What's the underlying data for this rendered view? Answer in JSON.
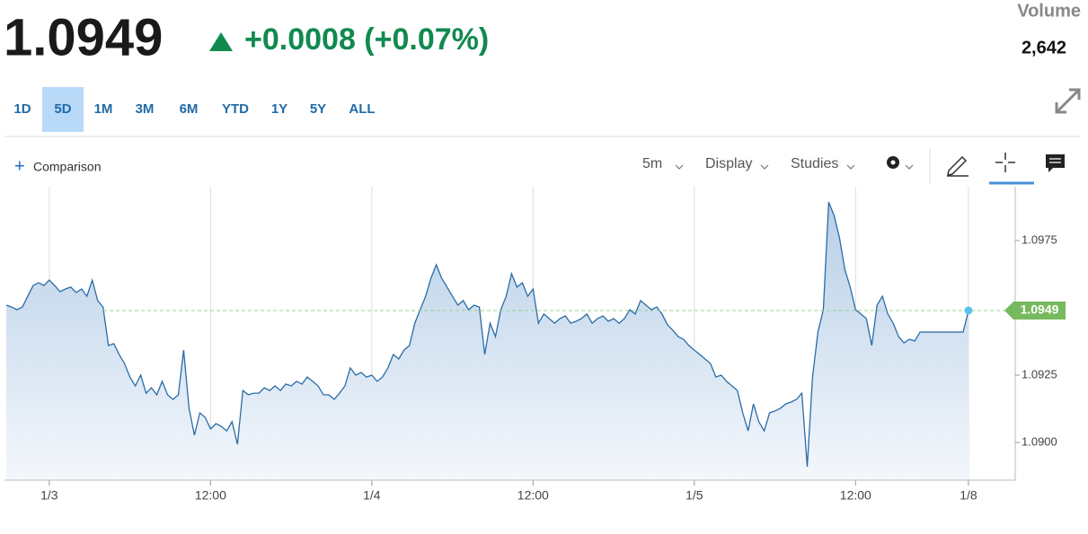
{
  "header": {
    "price": "1.0949",
    "change": "+0.0008 (+0.07%)",
    "volume_label": "Volume",
    "volume": "2,642"
  },
  "ranges": [
    "1D",
    "5D",
    "1M",
    "3M",
    "6M",
    "YTD",
    "1Y",
    "5Y",
    "ALL"
  ],
  "selected_range": "5D",
  "toolbar": {
    "comparison": "Comparison",
    "interval": "5m",
    "display": "Display",
    "studies": "Studies"
  },
  "chart_data": {
    "type": "line",
    "color": "#2a6ca6",
    "categories": [
      null,
      null,
      null,
      null,
      null,
      null,
      null,
      null,
      "1/3",
      null,
      null,
      null,
      null,
      null,
      null,
      null,
      null,
      null,
      null,
      null,
      null,
      null,
      null,
      null,
      null,
      null,
      null,
      null,
      null,
      null,
      null,
      null,
      null,
      null,
      null,
      null,
      null,
      null,
      "12:00",
      null,
      null,
      null,
      null,
      null,
      null,
      null,
      null,
      null,
      null,
      null,
      null,
      null,
      null,
      null,
      null,
      null,
      null,
      null,
      null,
      null,
      null,
      null,
      null,
      null,
      null,
      null,
      null,
      null,
      "1/4",
      null,
      null,
      null,
      null,
      null,
      null,
      null,
      null,
      null,
      null,
      null,
      null,
      null,
      null,
      null,
      null,
      null,
      null,
      null,
      null,
      null,
      null,
      null,
      null,
      null,
      null,
      null,
      null,
      null,
      "12:00",
      null,
      null,
      null,
      null,
      null,
      null,
      null,
      null,
      null,
      null,
      null,
      null,
      null,
      null,
      null,
      null,
      null,
      null,
      null,
      null,
      null,
      null,
      null,
      null,
      null,
      null,
      null,
      null,
      null,
      "1/5",
      null,
      null,
      null,
      null,
      null,
      null,
      null,
      null,
      null,
      null,
      null,
      null,
      null,
      null,
      null,
      null,
      null,
      null,
      null,
      null,
      null,
      null,
      null,
      null,
      null,
      null,
      null,
      null,
      null,
      "12:00",
      null,
      null,
      null,
      null,
      null,
      null,
      null,
      null,
      null,
      null,
      null,
      null,
      null,
      null,
      null,
      null,
      null,
      null,
      null,
      null,
      "1/8"
    ],
    "values": [
      1.0951,
      1.09503,
      1.09493,
      1.09503,
      1.09543,
      1.09583,
      1.09593,
      1.09583,
      1.09603,
      1.09583,
      1.0956,
      1.0957,
      1.09577,
      1.09557,
      1.0957,
      1.09543,
      1.09603,
      1.09527,
      1.09503,
      1.0936,
      1.09367,
      1.09327,
      1.09293,
      1.09243,
      1.0921,
      1.0925,
      1.09183,
      1.09203,
      1.09177,
      1.09227,
      1.09177,
      1.0916,
      1.09177,
      1.09343,
      1.09127,
      1.09027,
      1.0911,
      1.09093,
      1.0905,
      1.0907,
      1.0906,
      1.09043,
      1.09077,
      1.08993,
      1.09193,
      1.09177,
      1.09183,
      1.09183,
      1.09203,
      1.09193,
      1.0921,
      1.09193,
      1.09217,
      1.0921,
      1.09227,
      1.09217,
      1.09243,
      1.09227,
      1.0921,
      1.09177,
      1.09177,
      1.0916,
      1.09183,
      1.0921,
      1.09277,
      1.0925,
      1.0926,
      1.09243,
      1.0925,
      1.09227,
      1.09243,
      1.09277,
      1.09327,
      1.0931,
      1.09343,
      1.0936,
      1.09443,
      1.09493,
      1.09543,
      1.0961,
      1.0966,
      1.0961,
      1.09577,
      1.09543,
      1.0951,
      1.09527,
      1.09493,
      1.0951,
      1.09503,
      1.09327,
      1.09443,
      1.09393,
      1.09493,
      1.09543,
      1.09627,
      1.09577,
      1.09593,
      1.09543,
      1.0957,
      1.09443,
      1.09477,
      1.0946,
      1.09443,
      1.0946,
      1.0947,
      1.09443,
      1.0945,
      1.0946,
      1.09477,
      1.09443,
      1.0946,
      1.0947,
      1.0945,
      1.0946,
      1.09443,
      1.0946,
      1.09493,
      1.09477,
      1.09527,
      1.0951,
      1.09493,
      1.09503,
      1.09477,
      1.09437,
      1.09417,
      1.09393,
      1.09383,
      1.0936,
      1.09343,
      1.09327,
      1.0931,
      1.09293,
      1.09243,
      1.0925,
      1.09227,
      1.0921,
      1.09193,
      1.0911,
      1.09043,
      1.09143,
      1.09077,
      1.09043,
      1.0911,
      1.09117,
      1.09127,
      1.09143,
      1.0915,
      1.0916,
      1.09183,
      1.0891,
      1.09243,
      1.0941,
      1.09493,
      1.09893,
      1.09843,
      1.0976,
      1.09643,
      1.09577,
      1.09493,
      1.09477,
      1.0946,
      1.0936,
      1.0951,
      1.09543,
      1.09477,
      1.09443,
      1.09393,
      1.0937,
      1.09383,
      1.09377,
      1.0941,
      1.0941,
      1.0941,
      1.0941,
      1.0941,
      1.0941,
      1.0941,
      1.0941,
      1.0941,
      1.0949
    ],
    "ylim": [
      1.0886,
      1.0995
    ],
    "yticks": [
      {
        "value": 1.09,
        "label": "1.0900"
      },
      1.0925,
      1.0975
    ],
    "grid": true
  }
}
